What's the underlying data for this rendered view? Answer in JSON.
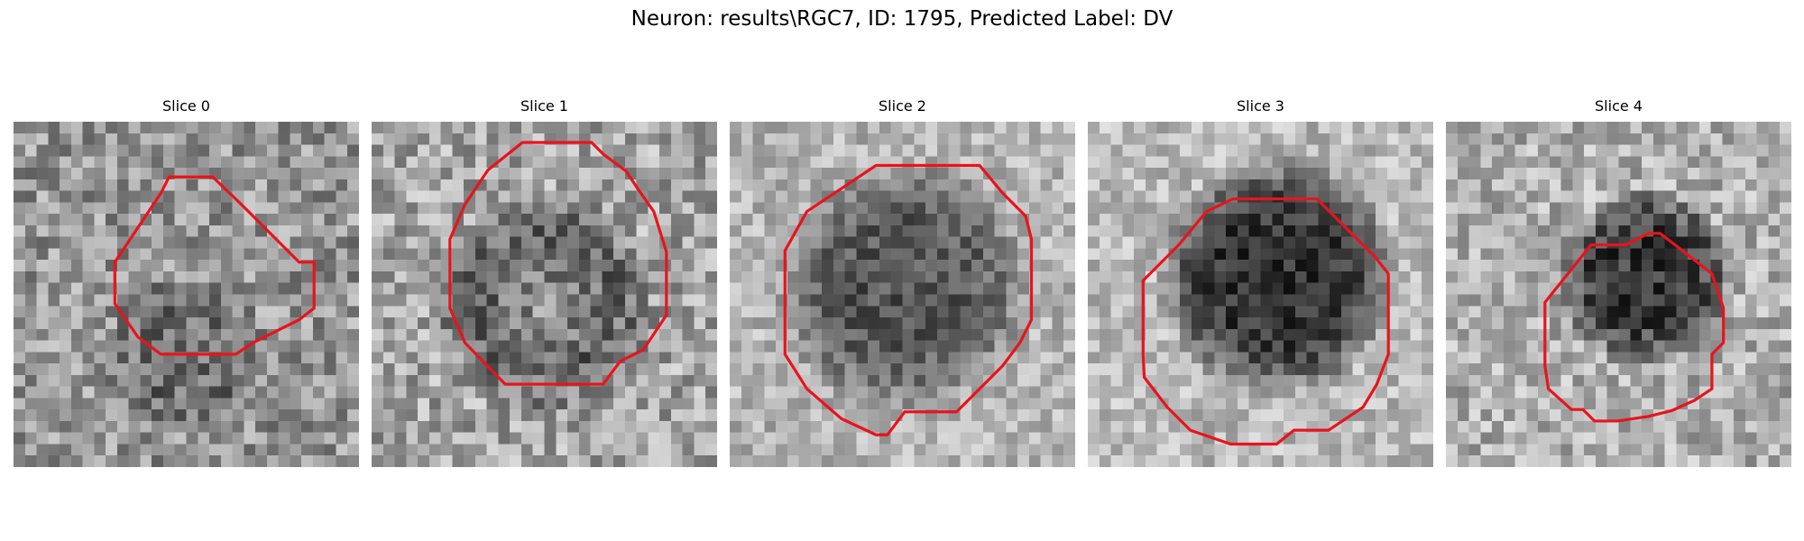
{
  "figure": {
    "title": "Neuron: results\\RGC7, ID: 1795, Predicted Label: DV"
  },
  "contour_color": "#e8141c",
  "image_style": "grayscale 30x30 microscopy slice with red cell contour",
  "panels": [
    {
      "title": "Slice 0",
      "base": 150,
      "center": [
        0.5,
        0.68
      ],
      "radius": 0.24,
      "strength": 45,
      "ring": 0,
      "contrast": 55,
      "seed": 11
    },
    {
      "title": "Slice 1",
      "base": 165,
      "center": [
        0.5,
        0.53
      ],
      "radius": 0.33,
      "strength": 70,
      "ring": 1,
      "contrast": 55,
      "seed": 23
    },
    {
      "title": "Slice 2",
      "base": 180,
      "center": [
        0.5,
        0.48
      ],
      "radius": 0.37,
      "strength": 95,
      "ring": 0,
      "contrast": 40,
      "seed": 37
    },
    {
      "title": "Slice 3",
      "base": 185,
      "center": [
        0.55,
        0.45
      ],
      "radius": 0.35,
      "strength": 140,
      "ring": 0,
      "contrast": 40,
      "seed": 41
    },
    {
      "title": "Slice 4",
      "base": 175,
      "center": [
        0.58,
        0.45
      ],
      "radius": 0.26,
      "strength": 125,
      "ring": 0,
      "contrast": 50,
      "seed": 53
    }
  ]
}
